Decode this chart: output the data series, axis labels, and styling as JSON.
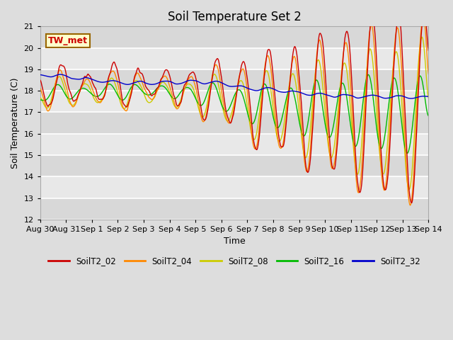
{
  "title": "Soil Temperature Set 2",
  "xlabel": "Time",
  "ylabel": "Soil Temperature (C)",
  "ylim": [
    12.0,
    21.0
  ],
  "yticks": [
    12.0,
    13.0,
    14.0,
    15.0,
    16.0,
    17.0,
    18.0,
    19.0,
    20.0,
    21.0
  ],
  "annotation_text": "TW_met",
  "annotation_color": "#cc0000",
  "annotation_bg": "#ffffcc",
  "annotation_border": "#996600",
  "series_colors": {
    "SoilT2_02": "#cc0000",
    "SoilT2_04": "#ff8800",
    "SoilT2_08": "#cccc00",
    "SoilT2_16": "#00bb00",
    "SoilT2_32": "#0000cc"
  },
  "bg_color": "#dddddd",
  "plot_bg_light": "#e8e8e8",
  "plot_bg_dark": "#d8d8d8",
  "grid_color": "#ffffff",
  "linewidth": 1.0
}
